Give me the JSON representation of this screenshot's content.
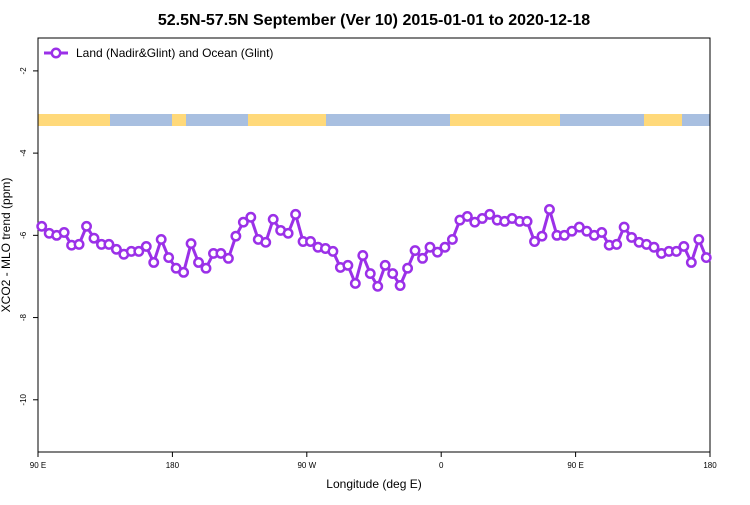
{
  "chart_data": {
    "type": "line",
    "title": "52.5N-57.5N September (Ver 10)   2015-01-01 to 2020-12-18",
    "xlabel": "Longitude (deg E)",
    "ylabel": "XCO2 - MLO trend (ppm)",
    "xlim": [
      90,
      540
    ],
    "ylim": [
      -11.27,
      -1.2
    ],
    "xticks": [
      {
        "value": 90,
        "label": "90 E"
      },
      {
        "value": 180,
        "label": "180"
      },
      {
        "value": 270,
        "label": "90 W"
      },
      {
        "value": 360,
        "label": "0"
      },
      {
        "value": 450,
        "label": "90 E"
      },
      {
        "value": 540,
        "label": "180"
      }
    ],
    "yticks": [
      -2,
      -4,
      -6,
      -8,
      -10
    ],
    "legend": "top-left",
    "x": [
      92.5,
      97.5,
      102.5,
      107.5,
      112.5,
      117.5,
      122.5,
      127.5,
      132.5,
      137.5,
      142.5,
      147.5,
      152.5,
      157.5,
      162.5,
      167.5,
      172.5,
      177.5,
      182.5,
      187.5,
      192.5,
      197.5,
      202.5,
      207.5,
      212.5,
      217.5,
      222.5,
      227.5,
      232.5,
      237.5,
      242.5,
      247.5,
      252.5,
      257.5,
      262.5,
      267.5,
      272.5,
      277.5,
      282.5,
      287.5,
      292.5,
      297.5,
      302.5,
      307.5,
      312.5,
      317.5,
      322.5,
      327.5,
      332.5,
      337.5,
      342.5,
      347.5,
      352.5,
      357.5,
      362.5,
      367.5,
      372.5,
      377.5,
      382.5,
      387.5,
      392.5,
      397.5,
      402.5,
      407.5,
      412.5,
      417.5,
      422.5,
      427.5,
      432.5,
      437.5,
      442.5,
      447.5,
      452.5,
      457.5,
      462.5,
      467.5,
      472.5,
      477.5,
      482.5,
      487.5,
      492.5,
      497.5,
      502.5,
      507.5,
      512.5,
      517.5,
      522.5,
      527.5,
      532.5,
      537.5
    ],
    "series": [
      {
        "name": "Land (Nadir&Glint) and Ocean (Glint)",
        "color": "#9b30e8",
        "values": [
          -5.78,
          -5.95,
          -6.0,
          -5.93,
          -6.24,
          -6.22,
          -5.78,
          -6.07,
          -6.22,
          -6.22,
          -6.34,
          -6.46,
          -6.39,
          -6.39,
          -6.27,
          -6.66,
          -6.1,
          -6.54,
          -6.8,
          -6.9,
          -6.2,
          -6.66,
          -6.8,
          -6.44,
          -6.44,
          -6.56,
          -6.02,
          -5.68,
          -5.56,
          -6.1,
          -6.17,
          -5.61,
          -5.88,
          -5.95,
          -5.49,
          -6.15,
          -6.15,
          -6.29,
          -6.32,
          -6.39,
          -6.78,
          -6.73,
          -7.17,
          -6.49,
          -6.93,
          -7.24,
          -6.73,
          -6.93,
          -7.22,
          -6.8,
          -6.37,
          -6.56,
          -6.29,
          -6.41,
          -6.29,
          -6.1,
          -5.63,
          -5.54,
          -5.68,
          -5.59,
          -5.49,
          -5.63,
          -5.66,
          -5.59,
          -5.66,
          -5.66,
          -6.15,
          -6.02,
          -5.37,
          -6.0,
          -6.0,
          -5.9,
          -5.8,
          -5.9,
          -6.0,
          -5.93,
          -6.24,
          -6.22,
          -5.8,
          -6.05,
          -6.17,
          -6.22,
          -6.29,
          -6.44,
          -6.39,
          -6.39,
          -6.27,
          -6.66,
          -6.1,
          -6.54
        ]
      }
    ]
  }
}
